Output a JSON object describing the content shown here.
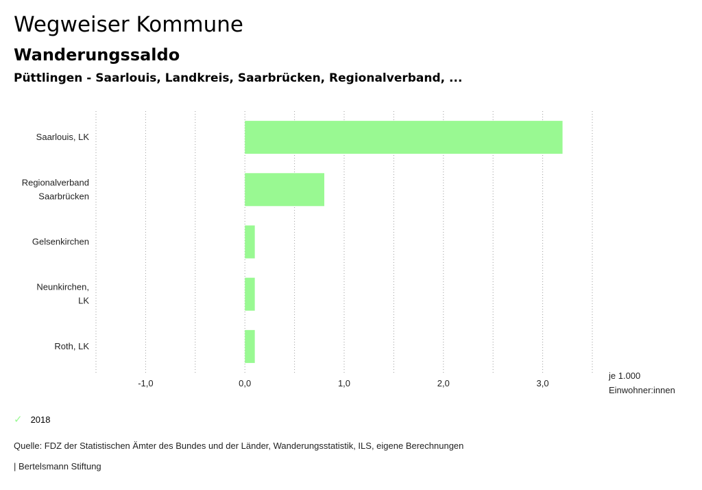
{
  "header": {
    "title": "Wegweiser Kommune",
    "subtitle": "Wanderungssaldo",
    "region": "Püttlingen - Saarlouis, Landkreis, Saarbrücken, Regionalverband, ..."
  },
  "chart_data": {
    "type": "bar",
    "orientation": "horizontal",
    "categories": [
      [
        "Saarlouis, LK"
      ],
      [
        "Regionalverband",
        "Saarbrücken"
      ],
      [
        "Gelsenkirchen"
      ],
      [
        "Neunkirchen,",
        "LK"
      ],
      [
        "Roth, LK"
      ]
    ],
    "series": [
      {
        "name": "2018",
        "values": [
          3.2,
          0.8,
          0.1,
          0.1,
          0.1
        ],
        "color": "#99f992"
      }
    ],
    "xlim": [
      -1.5,
      3.5
    ],
    "x_ticks": [
      -1.0,
      0.0,
      1.0,
      2.0,
      3.0
    ],
    "x_tick_labels": [
      "-1,0",
      "0,0",
      "1,0",
      "2,0",
      "3,0"
    ],
    "unit_label": [
      "je 1.000",
      "Einwohner:innen"
    ],
    "grid": "vertical-dotted",
    "legend_position": "bottom-left"
  },
  "legend": {
    "items": [
      {
        "label": "2018",
        "icon": "check-icon",
        "color": "#99f992"
      }
    ]
  },
  "footer": {
    "source": "Quelle: FDZ der Statistischen Ämter des Bundes und der Länder, Wanderungsstatistik, ILS, eigene Berechnungen",
    "publisher": "| Bertelsmann Stiftung"
  }
}
